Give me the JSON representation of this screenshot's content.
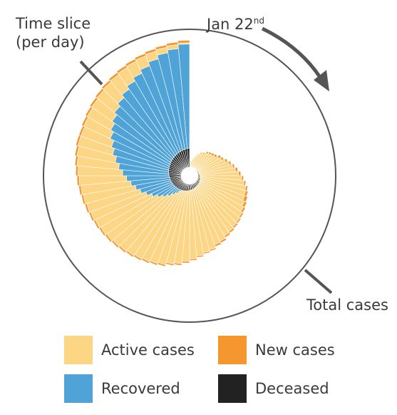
{
  "chart_data": {
    "type": "radial-stacked-bar",
    "start_label": "Jan 22",
    "start_label_suffix": "nd",
    "annotations": {
      "time_slice": [
        "Time slice",
        "(per day)"
      ],
      "total": "Total cases"
    },
    "ring_scale": 900000,
    "days": 72,
    "series": [
      {
        "name": "Deceased",
        "color": "#222222"
      },
      {
        "name": "Recovered",
        "color": "#4fa3d7"
      },
      {
        "name": "Active cases",
        "color": "#fcd685"
      },
      {
        "name": "New cases",
        "color": "#f5962f"
      }
    ],
    "radius_fraction": [
      0.03,
      0.05,
      0.07,
      0.09,
      0.11,
      0.13,
      0.14,
      0.16,
      0.17,
      0.18,
      0.19,
      0.21,
      0.22,
      0.24,
      0.26,
      0.28,
      0.3,
      0.32,
      0.34,
      0.36,
      0.38,
      0.39,
      0.4,
      0.41,
      0.42,
      0.43,
      0.44,
      0.45,
      0.46,
      0.47,
      0.49,
      0.5,
      0.52,
      0.53,
      0.55,
      0.57,
      0.59,
      0.61,
      0.62,
      0.64,
      0.65,
      0.66,
      0.67,
      0.68,
      0.69,
      0.7,
      0.71,
      0.72,
      0.73,
      0.74,
      0.75,
      0.76,
      0.77,
      0.78,
      0.79,
      0.8,
      0.81,
      0.82,
      0.82,
      0.83,
      0.84,
      0.85,
      0.86,
      0.87,
      0.88,
      0.89,
      0.9,
      0.91,
      0.92,
      0.93,
      0.94,
      0.95
    ],
    "deceased_fraction": [
      0.008,
      0.01,
      0.012,
      0.014,
      0.016,
      0.018,
      0.02,
      0.022,
      0.024,
      0.026,
      0.028,
      0.03,
      0.032,
      0.034,
      0.036,
      0.038,
      0.04,
      0.042,
      0.044,
      0.046,
      0.048,
      0.05,
      0.052,
      0.054,
      0.056,
      0.058,
      0.06,
      0.062,
      0.064,
      0.066,
      0.068,
      0.07,
      0.072,
      0.074,
      0.076,
      0.078,
      0.08,
      0.082,
      0.084,
      0.086,
      0.088,
      0.09,
      0.092,
      0.094,
      0.096,
      0.098,
      0.1,
      0.102,
      0.104,
      0.106,
      0.108,
      0.11,
      0.112,
      0.114,
      0.116,
      0.118,
      0.12,
      0.122,
      0.124,
      0.126,
      0.128,
      0.13,
      0.132,
      0.134,
      0.136,
      0.138,
      0.14,
      0.142,
      0.144,
      0.146,
      0.148,
      0.15
    ],
    "recovered_fraction": [
      0,
      0,
      0,
      0,
      0,
      0,
      0,
      0,
      0,
      0,
      0,
      0,
      0,
      0,
      0,
      0,
      0,
      0,
      0,
      0,
      0,
      0,
      0,
      0,
      0,
      0,
      0,
      0,
      0,
      0,
      0,
      0,
      0,
      0,
      0,
      0,
      0,
      0,
      0,
      0,
      0,
      0,
      0.02,
      0.05,
      0.08,
      0.12,
      0.16,
      0.2,
      0.24,
      0.28,
      0.32,
      0.35,
      0.38,
      0.41,
      0.44,
      0.47,
      0.5,
      0.53,
      0.56,
      0.59,
      0.61,
      0.63,
      0.65,
      0.67,
      0.69,
      0.71,
      0.73,
      0.75,
      0.77,
      0.79,
      0.8,
      0.82
    ],
    "new_fraction": [
      0.05,
      0.05,
      0.05,
      0.06,
      0.06,
      0.07,
      0.08,
      0.08,
      0.09,
      0.1,
      0.1,
      0.09,
      0.08,
      0.07,
      0.06,
      0.05,
      0.06,
      0.05,
      0.04,
      0.04,
      0.04,
      0.05,
      0.06,
      0.05,
      0.04,
      0.03,
      0.03,
      0.03,
      0.03,
      0.03,
      0.03,
      0.03,
      0.02,
      0.02,
      0.02,
      0.02,
      0.02,
      0.02,
      0.02,
      0.02,
      0.02,
      0.02,
      0.02,
      0.02,
      0.02,
      0.02,
      0.02,
      0.02,
      0.02,
      0.02,
      0.02,
      0.02,
      0.02,
      0.02,
      0.02,
      0.02,
      0.02,
      0.02,
      0.02,
      0.02,
      0.02,
      0.02,
      0.02,
      0.02,
      0.02,
      0.02,
      0.02,
      0.02,
      0.02,
      0.02,
      0.02,
      0.02
    ]
  },
  "legend": [
    {
      "label": "Active cases",
      "color": "#fcd685"
    },
    {
      "label": "New cases",
      "color": "#f5962f"
    },
    {
      "label": "Recovered",
      "color": "#4fa3d7"
    },
    {
      "label": "Deceased",
      "color": "#222222"
    }
  ]
}
